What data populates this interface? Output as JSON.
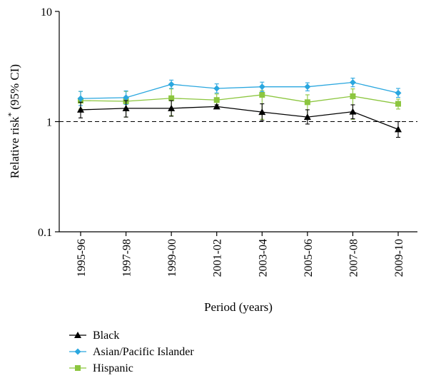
{
  "chart_data": {
    "type": "line",
    "title": "",
    "xlabel": "Period (years)",
    "ylabel": "Relative risk",
    "ylabel_sup": "*",
    "ylabel_suffix": "(95% CI)",
    "yscale": "log",
    "ylim": [
      0.1,
      10
    ],
    "yticks": [
      "0.1",
      "1",
      "10"
    ],
    "reference_line": 1,
    "categories": [
      "1995-96",
      "1997-98",
      "1999-00",
      "2001-02",
      "2003-04",
      "2005-06",
      "2007-08",
      "2009-10"
    ],
    "legend_position": "bottom-left",
    "series": [
      {
        "name": "Black",
        "color": "#000000",
        "marker": "triangle",
        "values": [
          1.28,
          1.32,
          1.32,
          1.37,
          1.22,
          1.1,
          1.23,
          0.85
        ],
        "ci_low": [
          1.08,
          1.1,
          1.12,
          1.33,
          1.02,
          0.95,
          1.06,
          0.72
        ],
        "ci_high": [
          1.5,
          1.55,
          1.55,
          1.42,
          1.45,
          1.28,
          1.42,
          1.0
        ]
      },
      {
        "name": "Asian/Pacific Islander",
        "color": "#2aa7df",
        "marker": "diamond",
        "values": [
          1.62,
          1.65,
          2.18,
          2.0,
          2.07,
          2.07,
          2.27,
          1.82
        ],
        "ci_low": [
          1.4,
          1.43,
          2.0,
          1.82,
          1.87,
          1.9,
          2.07,
          1.66
        ],
        "ci_high": [
          1.88,
          1.9,
          2.38,
          2.2,
          2.28,
          2.25,
          2.48,
          2.0
        ]
      },
      {
        "name": "Hispanic",
        "color": "#8cc63f",
        "marker": "square",
        "values": [
          1.55,
          1.53,
          1.63,
          1.57,
          1.75,
          1.5,
          1.7,
          1.45
        ],
        "ci_low": [
          1.3,
          1.1,
          1.13,
          1.35,
          1.05,
          1.05,
          1.05,
          1.3
        ],
        "ci_high": [
          1.88,
          1.88,
          1.98,
          1.78,
          1.92,
          1.75,
          1.98,
          1.6
        ]
      }
    ]
  }
}
